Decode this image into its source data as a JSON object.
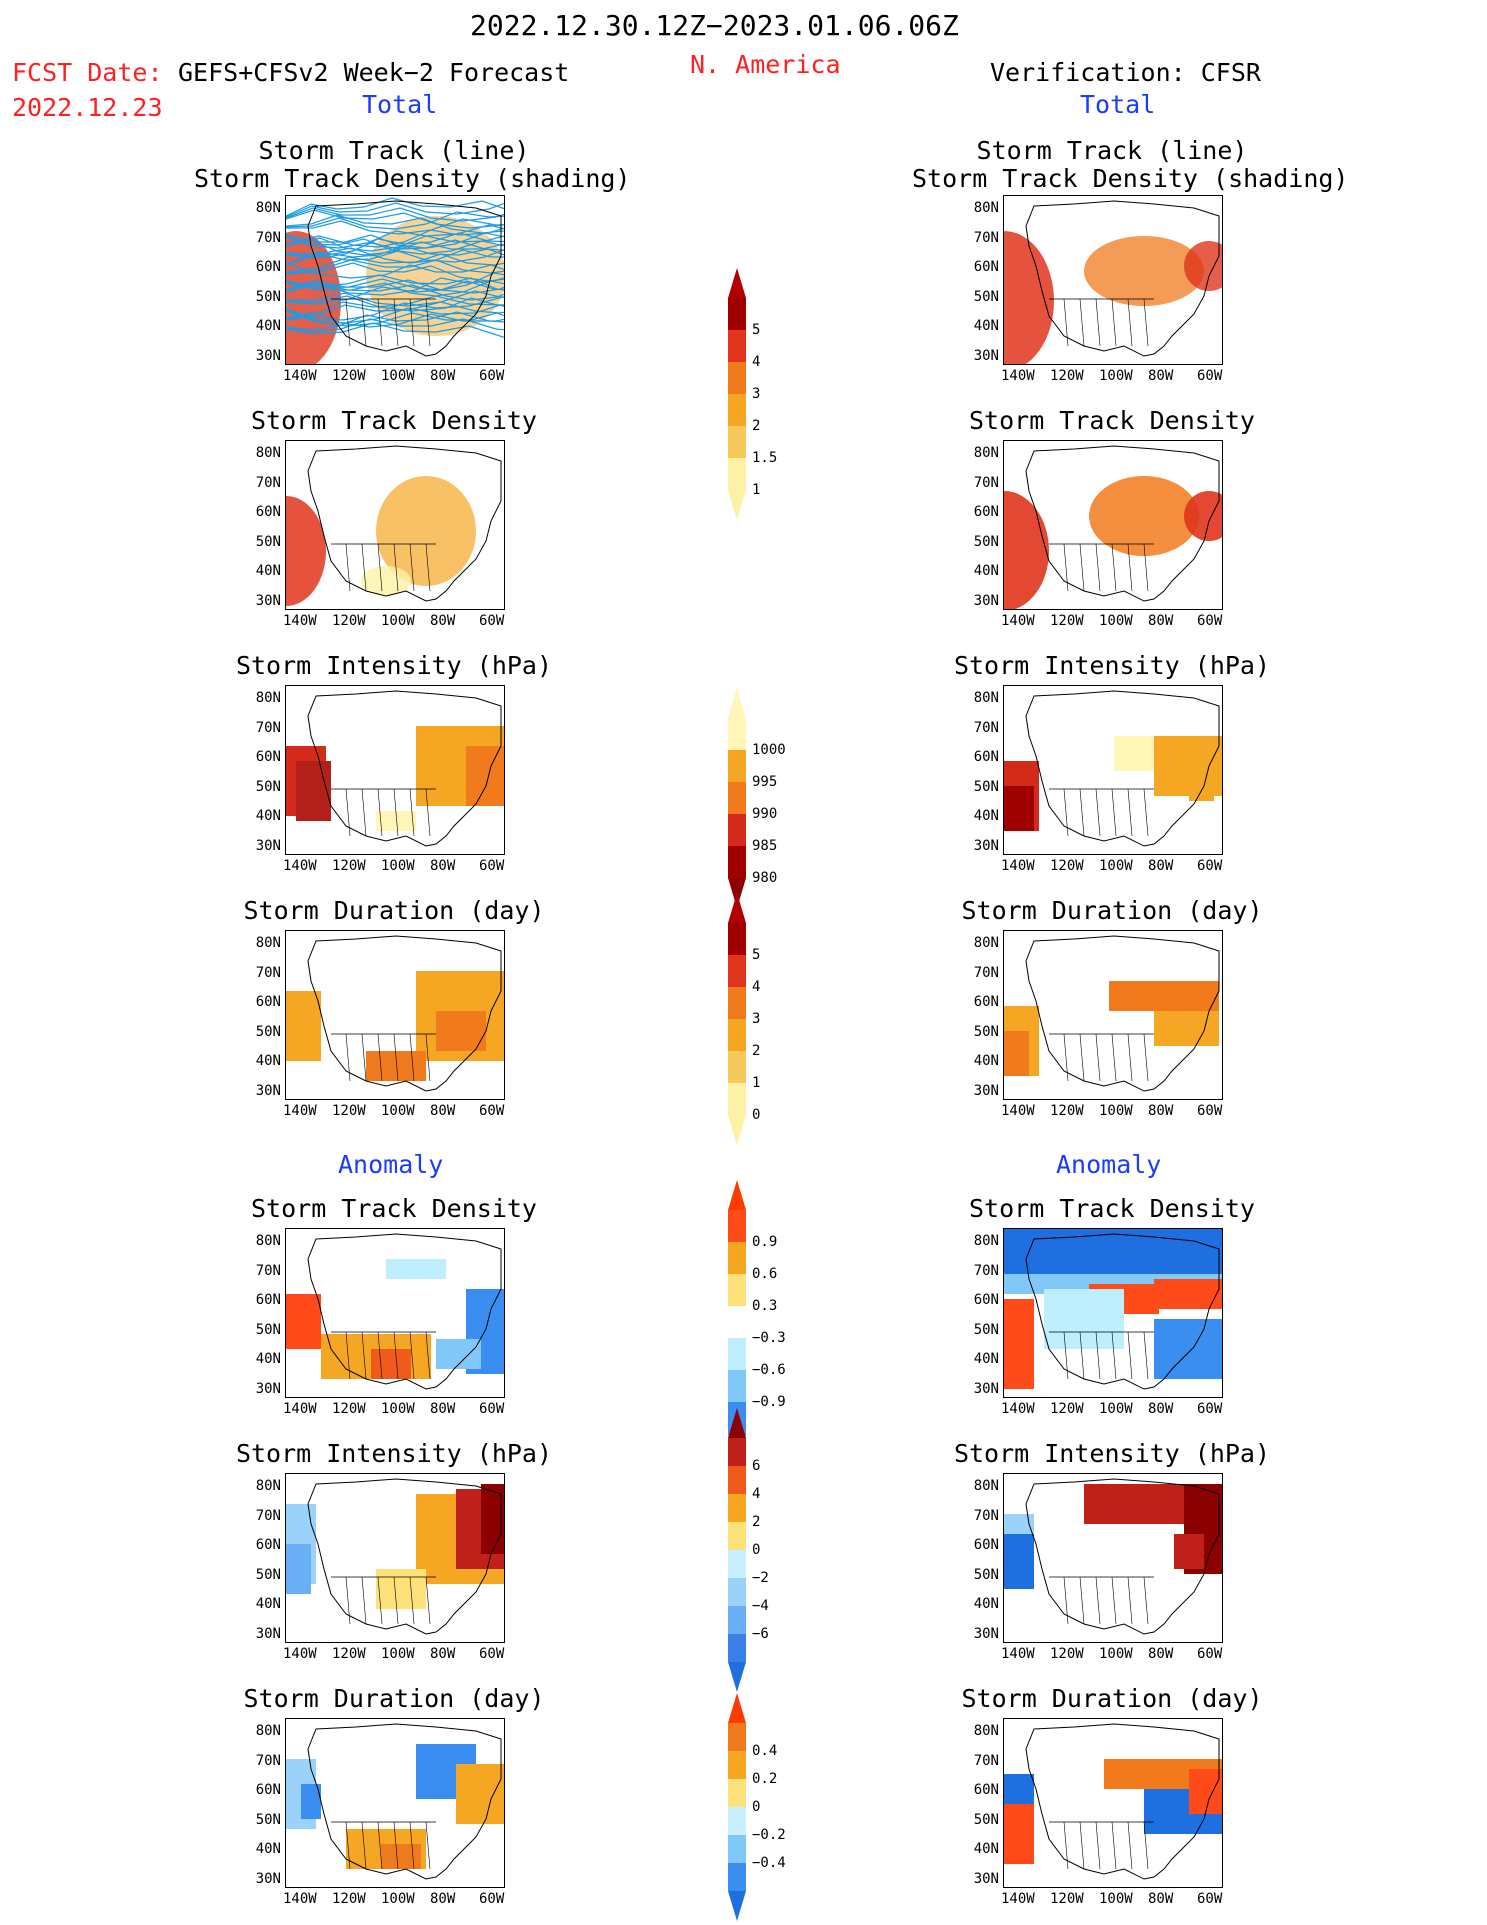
{
  "header": {
    "period": "2022.12.30.12Z−2023.01.06.06Z",
    "fcst_date_label": "FCST Date:",
    "fcst_date": "2022.12.23",
    "model": "GEFS+CFSv2 Week−2 Forecast",
    "region": "N. America",
    "verification": "Verification: CFSR",
    "total_left": "Total",
    "total_right": "Total",
    "anomaly_left": "Anomaly",
    "anomaly_right": "Anomaly"
  },
  "axis": {
    "lat_labels": [
      "80N",
      "70N",
      "60N",
      "50N",
      "40N",
      "30N"
    ],
    "lon_labels": [
      "140W",
      "120W",
      "100W",
      "80W",
      "60W"
    ]
  },
  "panels": {
    "titles": [
      "Storm Track (line)\nStorm Track Density (shading)",
      "Storm Track Density",
      "Storm Intensity (hPa)",
      "Storm Duration (day)",
      "Storm Track Density",
      "Storm Intensity (hPa)",
      "Storm Duration (day)"
    ]
  },
  "colorbars": [
    {
      "name": "density",
      "labels": [
        "5",
        "4",
        "3",
        "2",
        "1.5",
        "1"
      ],
      "colors": [
        "#a00000",
        "#e0341c",
        "#f07a1c",
        "#f5a623",
        "#f7c85a",
        "#fdf1a6"
      ],
      "arrow_top": "#b00000"
    },
    {
      "name": "intensity",
      "labels": [
        "1000",
        "995",
        "990",
        "985",
        "980"
      ],
      "colors": [
        "#fff6b8",
        "#f5a623",
        "#f07a1c",
        "#d42a1a",
        "#a00000"
      ],
      "arrow_bottom": "#8b0000"
    },
    {
      "name": "duration",
      "labels": [
        "5",
        "4",
        "3",
        "2",
        "1",
        "0"
      ],
      "colors": [
        "#a00000",
        "#e0341c",
        "#f07a1c",
        "#f5a623",
        "#f7c85a",
        "#fdf1a6"
      ],
      "arrow_top": "#b00000"
    },
    {
      "name": "density_anom",
      "labels": [
        "0.9",
        "0.6",
        "0.3",
        "−0.3",
        "−0.6",
        "−0.9"
      ],
      "colors": [
        "#ff4a1a",
        "#f5a623",
        "#fde27a",
        "#ffffff",
        "#bfefff",
        "#7fc8f8",
        "#3a8ef0"
      ],
      "arrow_top": "#ff3a00",
      "arrow_bottom": "#1e6fe0"
    },
    {
      "name": "intensity_anom",
      "labels": [
        "6",
        "4",
        "2",
        "0",
        "−2",
        "−4",
        "−6"
      ],
      "colors": [
        "#c0201a",
        "#f05a1a",
        "#f5a623",
        "#fde27a",
        "#c8f0ff",
        "#9ad2fa",
        "#6aaef5",
        "#3a7fe6"
      ],
      "arrow_top": "#8b0000",
      "arrow_bottom": "#1e6fe0"
    },
    {
      "name": "duration_anom",
      "labels": [
        "0.4",
        "0.2",
        "0",
        "−0.2",
        "−0.4"
      ],
      "colors": [
        "#f07a1c",
        "#f5a623",
        "#fde27a",
        "#c8f0ff",
        "#7fc8f8",
        "#3a8ef0"
      ],
      "arrow_top": "#ff3a00",
      "arrow_bottom": "#1e6fe0"
    }
  ]
}
